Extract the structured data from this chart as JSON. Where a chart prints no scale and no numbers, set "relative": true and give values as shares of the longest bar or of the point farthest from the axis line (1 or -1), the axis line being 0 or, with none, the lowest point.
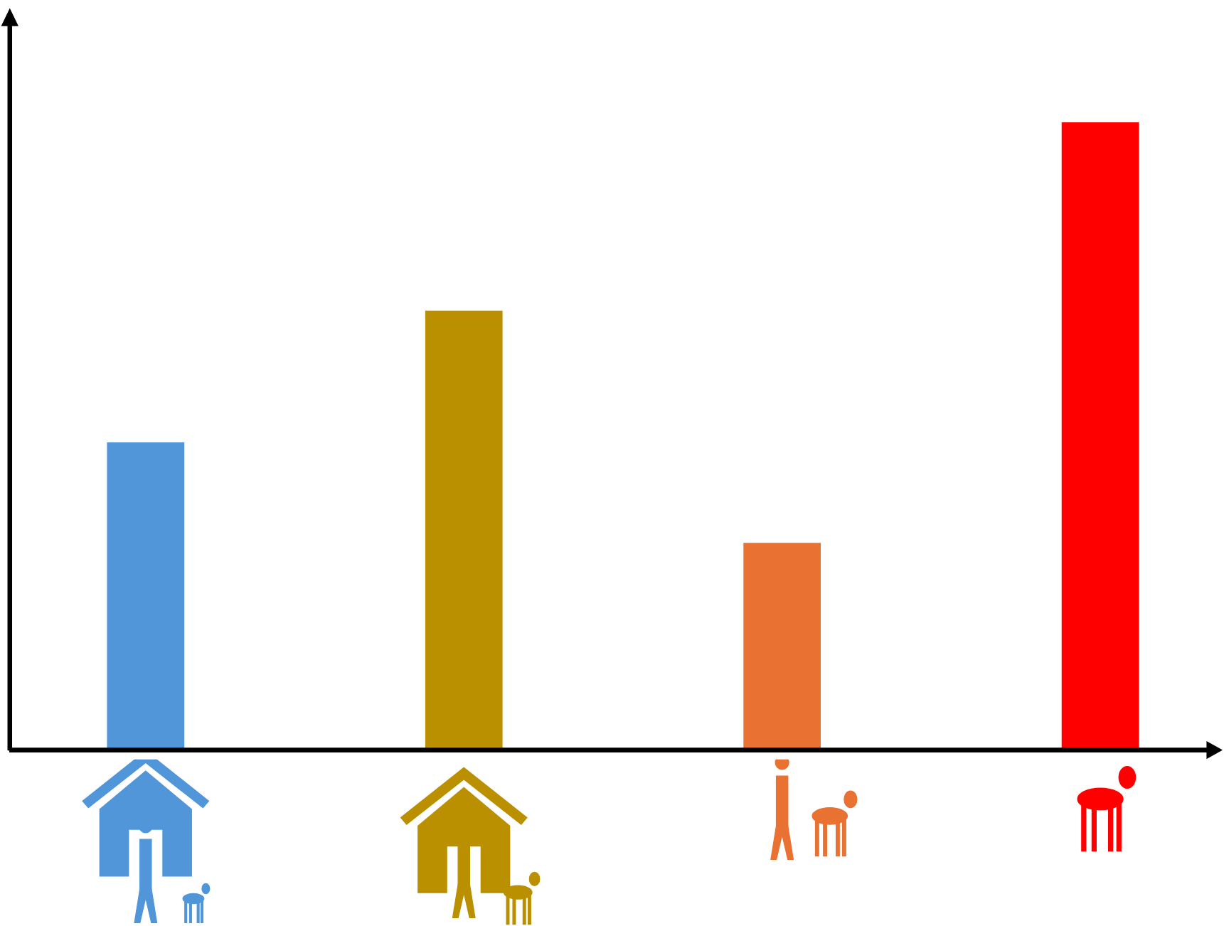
{
  "chart_data": {
    "type": "bar",
    "relative": true,
    "categories": [
      null,
      null,
      null,
      null
    ],
    "values": [
      0.49,
      0.7,
      0.33,
      1.0
    ],
    "colors": [
      "#5096d9",
      "#bb9000",
      "#e97132",
      "#ff0000"
    ],
    "grid": false,
    "legend": false
  }
}
